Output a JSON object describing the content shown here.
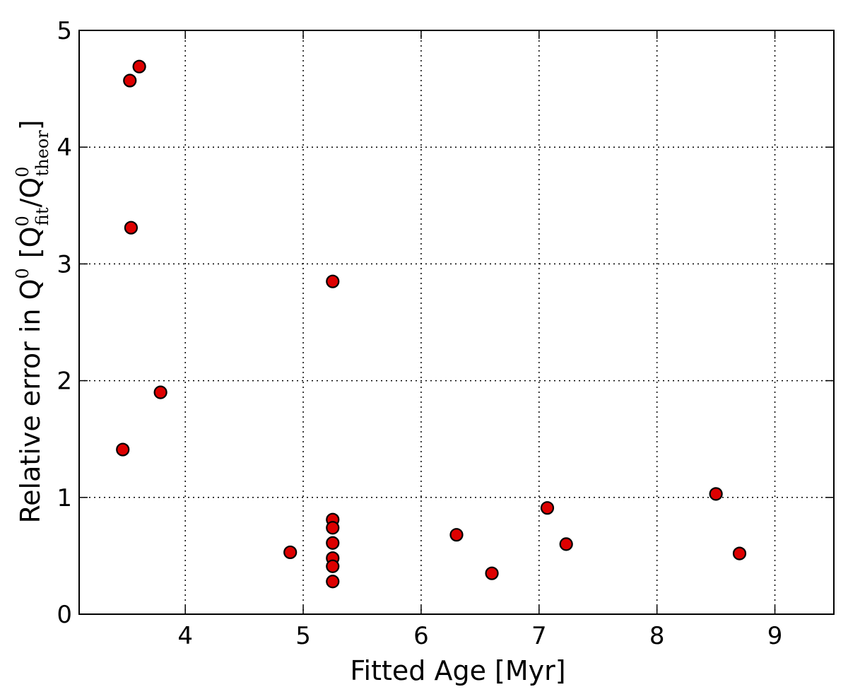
{
  "chart_data": {
    "type": "scatter",
    "xlabel": "Fitted Age [Myr]",
    "ylabel": {
      "main": "Relative error in Q",
      "sup1": "0",
      "bracket_open": "[Q",
      "sup2": "0",
      "sub2": "fit",
      "slash": "/Q",
      "sup3": "0",
      "sub3": "theor",
      "bracket_close": "]"
    },
    "xlim": [
      3.1,
      9.5
    ],
    "ylim": [
      0,
      5
    ],
    "xticks": [
      4,
      5,
      6,
      7,
      8,
      9
    ],
    "yticks": [
      0,
      1,
      2,
      3,
      4,
      5
    ],
    "grid": true,
    "marker_color": "#dd0000",
    "points": [
      {
        "x": 3.53,
        "y": 4.57
      },
      {
        "x": 3.61,
        "y": 4.69
      },
      {
        "x": 3.54,
        "y": 3.31
      },
      {
        "x": 3.79,
        "y": 1.9
      },
      {
        "x": 3.47,
        "y": 1.41
      },
      {
        "x": 5.25,
        "y": 2.85
      },
      {
        "x": 4.89,
        "y": 0.53
      },
      {
        "x": 5.25,
        "y": 0.81
      },
      {
        "x": 5.25,
        "y": 0.74
      },
      {
        "x": 5.25,
        "y": 0.61
      },
      {
        "x": 5.25,
        "y": 0.48
      },
      {
        "x": 5.25,
        "y": 0.41
      },
      {
        "x": 5.25,
        "y": 0.28
      },
      {
        "x": 6.3,
        "y": 0.68
      },
      {
        "x": 6.6,
        "y": 0.35
      },
      {
        "x": 7.07,
        "y": 0.91
      },
      {
        "x": 7.23,
        "y": 0.6
      },
      {
        "x": 8.5,
        "y": 1.03
      },
      {
        "x": 8.7,
        "y": 0.52
      }
    ]
  }
}
